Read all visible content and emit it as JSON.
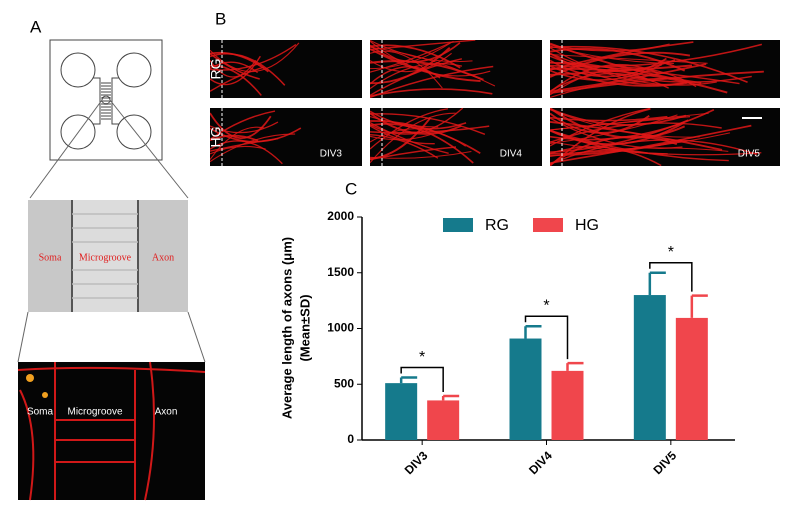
{
  "panels": {
    "a": "A",
    "b": "B",
    "c": "C"
  },
  "phase_image": {
    "soma": "Soma",
    "microgroove": "Microgroove",
    "axon": "Axon"
  },
  "fluorescence_image": {
    "soma": "Soma",
    "microgroove": "Microgroove",
    "axon": "Axon"
  },
  "rows": [
    "RG",
    "HG"
  ],
  "columns": [
    "DIV3",
    "DIV4",
    "DIV5"
  ],
  "chart_data": {
    "type": "bar",
    "y_label": "Average length of axons (μm)",
    "y_label_2": "(Mean±SD)",
    "categories": [
      "DIV3",
      "DIV4",
      "DIV5"
    ],
    "series": [
      {
        "name": "RG",
        "color": "#157a8c",
        "values": [
          510,
          910,
          1300
        ],
        "errors": [
          50,
          110,
          200
        ]
      },
      {
        "name": "HG",
        "color": "#f0464c",
        "values": [
          355,
          620,
          1095
        ],
        "errors": [
          40,
          70,
          200
        ]
      }
    ],
    "annotations": [
      "*",
      "*",
      "*"
    ],
    "ylim": [
      0,
      2000
    ],
    "yticks": [
      0,
      500,
      1000,
      1500,
      2000
    ]
  }
}
